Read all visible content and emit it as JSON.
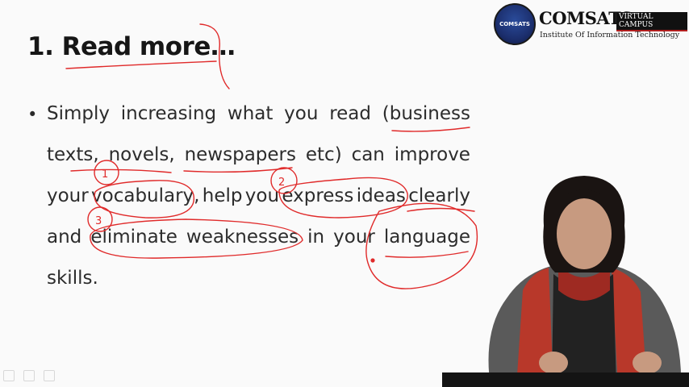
{
  "slide": {
    "title": "1. Read more…",
    "bullet_symbol": "•",
    "lines": [
      [
        "Simply",
        "increasing",
        "what",
        "you",
        "read",
        "(business"
      ],
      [
        "texts,",
        "novels,",
        "newspapers",
        "etc)",
        "can",
        "improve"
      ],
      [
        "your",
        "vocabulary,",
        "help",
        "you",
        "express",
        "ideas",
        "clearly"
      ],
      [
        "and",
        "eliminate",
        "weaknesses",
        "in",
        "your",
        "language"
      ],
      [
        "skills."
      ]
    ]
  },
  "logo": {
    "seal_text": "COMSATS",
    "brand": "COMSATS",
    "badge": "VIRTUAL CAMPUS",
    "subtitle": "Institute Of Information Technology"
  },
  "annotations": {
    "numbers": [
      "1",
      "2",
      "3"
    ]
  },
  "colors": {
    "ink": "#e02a2a",
    "logo_blue": "#1c2f6e",
    "badge_bg": "#111111"
  }
}
